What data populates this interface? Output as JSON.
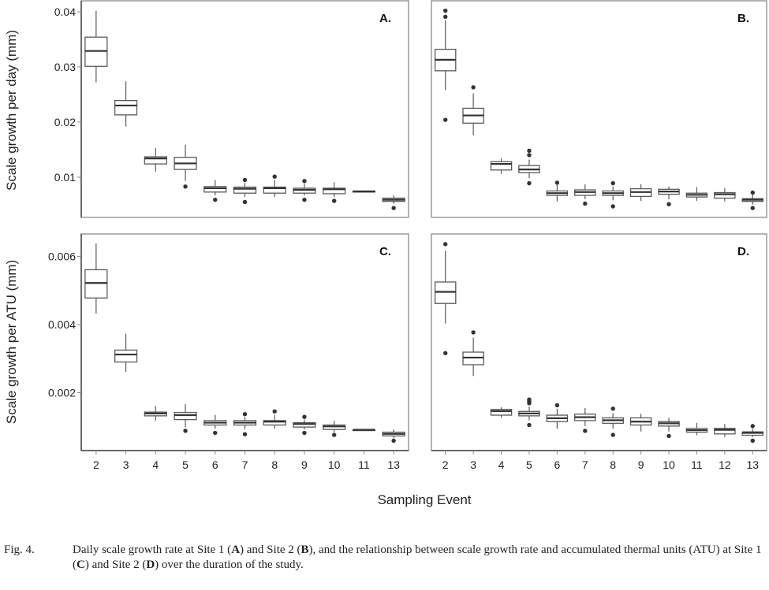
{
  "figure": {
    "xlabel": "Sampling Event",
    "ylabel_top": "Scale growth per day (mm)",
    "ylabel_bottom": "Scale growth per ATU (mm)"
  },
  "caption": {
    "label": "Fig. 4.",
    "segments": [
      {
        "t": "Daily scale growth rate at Site 1 (",
        "b": false
      },
      {
        "t": "A",
        "b": true
      },
      {
        "t": ") and Site 2 (",
        "b": false
      },
      {
        "t": "B",
        "b": true
      },
      {
        "t": "), and the relationship between scale growth rate and accumulated thermal units (ATU) at Site 1 (",
        "b": false
      },
      {
        "t": "C",
        "b": true
      },
      {
        "t": ") and Site 2 (",
        "b": false
      },
      {
        "t": "D",
        "b": true
      },
      {
        "t": ") over the duration of the study.",
        "b": false
      }
    ]
  },
  "colors": {
    "box_stroke": "#5a5a5a",
    "median": "#333333",
    "flier": "#333333",
    "frame": "#8a8a8a",
    "axis": "#222222"
  },
  "chart_data": [
    {
      "type": "box",
      "panel": "A.",
      "ylim": [
        0.0027,
        0.042
      ],
      "yticks": [
        0.01,
        0.02,
        0.03,
        0.04
      ],
      "ytick_labels": [
        "0.01",
        "0.02",
        "0.03",
        "0.04"
      ],
      "box_fields": [
        "whislo",
        "q1",
        "med",
        "q3",
        "whishi"
      ],
      "categories": [
        "2",
        "3",
        "4",
        "5",
        "6",
        "7",
        "8",
        "9",
        "10",
        "11",
        "13"
      ],
      "boxes": [
        [
          0.0272,
          0.0301,
          0.0329,
          0.0354,
          0.0402
        ],
        [
          0.0192,
          0.0213,
          0.023,
          0.0239,
          0.0274
        ],
        [
          0.011,
          0.0124,
          0.0134,
          0.0137,
          0.0153
        ],
        [
          0.0093,
          0.0114,
          0.0125,
          0.0136,
          0.0159
        ],
        [
          0.0067,
          0.0073,
          0.008,
          0.0083,
          0.0095
        ],
        [
          0.0064,
          0.0071,
          0.0079,
          0.0082,
          0.009
        ],
        [
          0.0064,
          0.0071,
          0.008,
          0.0082,
          0.0095
        ],
        [
          0.0067,
          0.0071,
          0.0077,
          0.008,
          0.0088
        ],
        [
          0.0064,
          0.007,
          0.0078,
          0.008,
          0.0091
        ],
        [
          0.0073,
          0.0073,
          0.0074,
          0.0075,
          0.0075
        ],
        [
          0.0052,
          0.0056,
          0.0059,
          0.0062,
          0.0067
        ]
      ],
      "fliers": [
        [],
        [],
        [],
        [
          0.0083
        ],
        [
          0.0059
        ],
        [
          0.0095,
          0.0055
        ],
        [
          0.0101
        ],
        [
          0.0093,
          0.0059
        ],
        [
          0.0057
        ],
        [],
        [
          0.0044
        ]
      ]
    },
    {
      "type": "box",
      "panel": "B.",
      "ylim": [
        0.0027,
        0.042
      ],
      "box_fields": [
        "whislo",
        "q1",
        "med",
        "q3",
        "whishi"
      ],
      "categories": [
        "2",
        "3",
        "4",
        "5",
        "6",
        "7",
        "8",
        "9",
        "10",
        "11",
        "12",
        "13"
      ],
      "boxes": [
        [
          0.0258,
          0.0293,
          0.0313,
          0.0332,
          0.0385
        ],
        [
          0.0176,
          0.0198,
          0.0212,
          0.0225,
          0.0252
        ],
        [
          0.0106,
          0.0113,
          0.0124,
          0.0128,
          0.0134
        ],
        [
          0.0098,
          0.0108,
          0.0114,
          0.0121,
          0.0132
        ],
        [
          0.0056,
          0.0067,
          0.0071,
          0.0075,
          0.0086
        ],
        [
          0.006,
          0.0067,
          0.0073,
          0.0077,
          0.0087
        ],
        [
          0.0058,
          0.0067,
          0.0071,
          0.0075,
          0.0083
        ],
        [
          0.0057,
          0.0065,
          0.0073,
          0.0079,
          0.0087
        ],
        [
          0.006,
          0.0069,
          0.0074,
          0.0078,
          0.0083
        ],
        [
          0.0057,
          0.0064,
          0.0068,
          0.0071,
          0.0082
        ],
        [
          0.0056,
          0.0062,
          0.0069,
          0.0072,
          0.008
        ],
        [
          0.005,
          0.0056,
          0.0059,
          0.0061,
          0.0069
        ]
      ],
      "fliers": [
        [
          0.0402,
          0.0391,
          0.0204
        ],
        [
          0.0263
        ],
        [],
        [
          0.0148,
          0.014,
          0.0089
        ],
        [
          0.009
        ],
        [
          0.0052
        ],
        [
          0.0089,
          0.0047
        ],
        [],
        [
          0.0051
        ],
        [],
        [],
        [
          0.0072,
          0.0044
        ]
      ]
    },
    {
      "type": "box",
      "panel": "C.",
      "ylim": [
        0.0003,
        0.00666
      ],
      "yticks": [
        0.002,
        0.004,
        0.006
      ],
      "ytick_labels": [
        "0.002",
        "0.004",
        "0.006"
      ],
      "box_fields": [
        "whislo",
        "q1",
        "med",
        "q3",
        "whishi"
      ],
      "categories": [
        "2",
        "3",
        "4",
        "5",
        "6",
        "7",
        "8",
        "9",
        "10",
        "11",
        "13"
      ],
      "boxes": [
        [
          0.00432,
          0.00478,
          0.00522,
          0.00561,
          0.00638
        ],
        [
          0.00261,
          0.0029,
          0.00312,
          0.00325,
          0.00373
        ],
        [
          0.00118,
          0.00132,
          0.00139,
          0.00143,
          0.00161
        ],
        [
          0.00098,
          0.00121,
          0.00134,
          0.00142,
          0.00167
        ],
        [
          0.00094,
          0.00105,
          0.00112,
          0.00118,
          0.00135
        ],
        [
          0.00092,
          0.00105,
          0.00112,
          0.00118,
          0.00128
        ],
        [
          0.00094,
          0.00105,
          0.00115,
          0.00118,
          0.00135
        ],
        [
          0.00092,
          0.00099,
          0.00108,
          0.00112,
          0.00121
        ],
        [
          0.00084,
          0.00092,
          0.00101,
          0.00105,
          0.00118
        ],
        [
          0.00091,
          0.00091,
          0.00091,
          0.00091,
          0.00091
        ],
        [
          0.00067,
          0.00073,
          0.00079,
          0.00084,
          0.00092
        ]
      ],
      "fliers": [
        [],
        [],
        [],
        [
          0.00088
        ],
        [
          0.00082
        ],
        [
          0.00137,
          0.00078
        ],
        [
          0.00145
        ],
        [
          0.00129,
          0.00082
        ],
        [
          0.00076
        ],
        [],
        [
          0.00059
        ]
      ]
    },
    {
      "type": "box",
      "panel": "D.",
      "ylim": [
        0.0003,
        0.00666
      ],
      "box_fields": [
        "whislo",
        "q1",
        "med",
        "q3",
        "whishi"
      ],
      "categories": [
        "2",
        "3",
        "4",
        "5",
        "6",
        "7",
        "8",
        "9",
        "10",
        "11",
        "12",
        "13"
      ],
      "boxes": [
        [
          0.00403,
          0.00462,
          0.00496,
          0.00525,
          0.00617
        ],
        [
          0.00249,
          0.00282,
          0.00303,
          0.00319,
          0.00362
        ],
        [
          0.00126,
          0.00134,
          0.00146,
          0.00151,
          0.00157
        ],
        [
          0.00119,
          0.00132,
          0.00139,
          0.00145,
          0.00159
        ],
        [
          0.00094,
          0.00115,
          0.00125,
          0.00134,
          0.00153
        ],
        [
          0.00102,
          0.00118,
          0.00128,
          0.00137,
          0.00155
        ],
        [
          0.00094,
          0.0011,
          0.00119,
          0.00126,
          0.0014
        ],
        [
          0.00086,
          0.00105,
          0.00115,
          0.00126,
          0.00138
        ],
        [
          0.00086,
          0.00102,
          0.0011,
          0.00115,
          0.00126
        ],
        [
          0.00075,
          0.00084,
          0.0009,
          0.00095,
          0.00111
        ],
        [
          0.0007,
          0.00079,
          0.00091,
          0.00095,
          0.00108
        ],
        [
          0.0007,
          0.00075,
          0.00082,
          0.00085,
          0.00094
        ]
      ],
      "fliers": [
        [
          0.00636,
          0.00316
        ],
        [
          0.00377
        ],
        [],
        [
          0.0018,
          0.00175,
          0.00169,
          0.00105
        ],
        [
          0.00163
        ],
        [
          0.00088
        ],
        [
          0.00153,
          0.00076
        ],
        [],
        [
          0.00073
        ],
        [],
        [],
        [
          0.00102,
          0.00059
        ]
      ]
    }
  ]
}
